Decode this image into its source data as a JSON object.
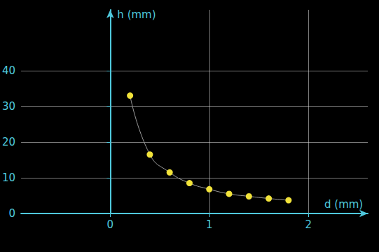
{
  "chart_data": {
    "type": "line",
    "x_label": "d (mm)",
    "y_label": "h (mm)",
    "x": [
      0.2,
      0.4,
      0.6,
      0.8,
      1.0,
      1.2,
      1.4,
      1.6,
      1.8
    ],
    "values": [
      33,
      16.5,
      11.5,
      8.5,
      6.8,
      5.5,
      4.8,
      4.2,
      3.7
    ],
    "color": "#f2e33a",
    "marker": "circle",
    "line_style": "solid",
    "xlim": [
      -0.9,
      2.6
    ],
    "ylim": [
      0,
      57
    ],
    "xticks": [
      0,
      1,
      2
    ],
    "yticks": [
      0,
      10,
      20,
      30,
      40
    ],
    "grid": true
  }
}
